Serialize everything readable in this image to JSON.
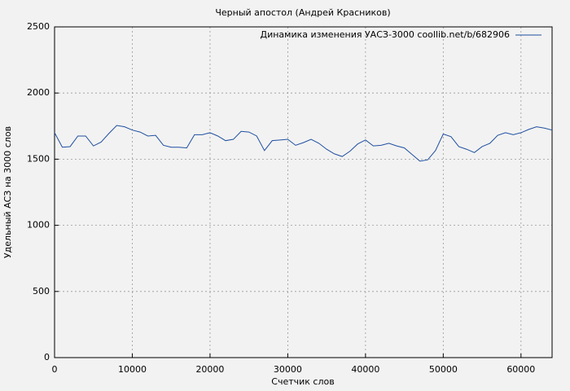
{
  "chart_data": {
    "type": "line",
    "title": "Черный апостол (Андрей Красников)",
    "x_label": "Счетчик слов",
    "y_label": "Удельный АСЗ на 3000 слов",
    "x": [
      0,
      1000,
      2000,
      3000,
      4000,
      5000,
      6000,
      7000,
      8000,
      9000,
      10000,
      11000,
      12000,
      13000,
      14000,
      15000,
      16000,
      17000,
      18000,
      19000,
      20000,
      21000,
      22000,
      23000,
      24000,
      25000,
      26000,
      27000,
      28000,
      29000,
      30000,
      31000,
      32000,
      33000,
      34000,
      35000,
      36000,
      37000,
      38000,
      39000,
      40000,
      41000,
      42000,
      43000,
      44000,
      45000,
      46000,
      47000,
      48000,
      49000,
      50000,
      51000,
      52000,
      53000,
      54000,
      55000,
      56000,
      57000,
      58000,
      59000,
      60000,
      61000,
      62000,
      63000,
      64000
    ],
    "series": [
      {
        "name": "Динамика изменения УАСЗ-3000 coollib.net/b/682906",
        "color": "#1f4fa0",
        "values": [
          1700,
          1590,
          1595,
          1675,
          1675,
          1600,
          1630,
          1695,
          1755,
          1745,
          1720,
          1705,
          1675,
          1680,
          1605,
          1590,
          1590,
          1585,
          1685,
          1685,
          1700,
          1675,
          1640,
          1650,
          1710,
          1705,
          1675,
          1565,
          1640,
          1645,
          1650,
          1605,
          1625,
          1650,
          1620,
          1575,
          1540,
          1520,
          1560,
          1615,
          1645,
          1600,
          1605,
          1620,
          1600,
          1585,
          1535,
          1485,
          1495,
          1565,
          1690,
          1670,
          1595,
          1575,
          1550,
          1595,
          1620,
          1680,
          1700,
          1685,
          1700,
          1725,
          1745,
          1735,
          1720
        ]
      }
    ],
    "xlim": [
      0,
      64000
    ],
    "ylim": [
      0,
      2500
    ],
    "xticks": [
      0,
      10000,
      20000,
      30000,
      40000,
      50000,
      60000
    ],
    "yticks": [
      0,
      500,
      1000,
      1500,
      2000,
      2500
    ],
    "grid": true,
    "legend": "top-right"
  }
}
